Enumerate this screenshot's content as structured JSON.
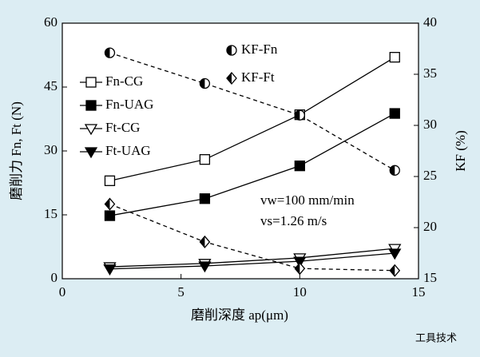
{
  "chart_data": {
    "type": "line",
    "x_label": "磨削深度 ap(μm)",
    "y_label": "磨削力 Fn, Ft (N)",
    "y2_label": "KF (%)",
    "xlim": [
      0,
      15
    ],
    "xticks": [
      0,
      5,
      10,
      15
    ],
    "ylim": [
      0,
      60
    ],
    "yticks": [
      0,
      15,
      30,
      45,
      60
    ],
    "y2lim": [
      15,
      40
    ],
    "y2ticks": [
      15,
      20,
      25,
      30,
      35,
      40
    ],
    "x": [
      2,
      6,
      10,
      14
    ],
    "series": [
      {
        "name": "Fn-CG",
        "color": "#000000",
        "marker": "square-open",
        "line": "solid",
        "values": [
          23,
          28,
          38.5,
          52
        ]
      },
      {
        "name": "Fn-UAG",
        "color": "#000000",
        "marker": "square-filled",
        "line": "solid",
        "values": [
          14.8,
          18.8,
          26.5,
          38.8
        ]
      },
      {
        "name": "Ft-CG",
        "color": "#000000",
        "marker": "triangle-down-open",
        "line": "solid",
        "values": [
          2.8,
          3.6,
          4.9,
          7.1
        ]
      },
      {
        "name": "Ft-UAG",
        "color": "#000000",
        "marker": "triangle-down-filled",
        "line": "solid",
        "values": [
          2.3,
          3.0,
          4.1,
          6.0
        ]
      },
      {
        "name": "KF-Fn",
        "color": "#000000",
        "marker": "circle-half",
        "line": "dashed",
        "axis": "y2",
        "values": [
          37.1,
          34.1,
          31.0,
          25.6
        ]
      },
      {
        "name": "KF-Ft",
        "color": "#000000",
        "marker": "diamond-half",
        "line": "dashed",
        "axis": "y2",
        "values": [
          22.3,
          18.6,
          16.0,
          15.8
        ]
      }
    ],
    "annotations": [
      "vw=100 mm/min",
      "vs=1.26 m/s"
    ],
    "watermark": "工具技术"
  }
}
